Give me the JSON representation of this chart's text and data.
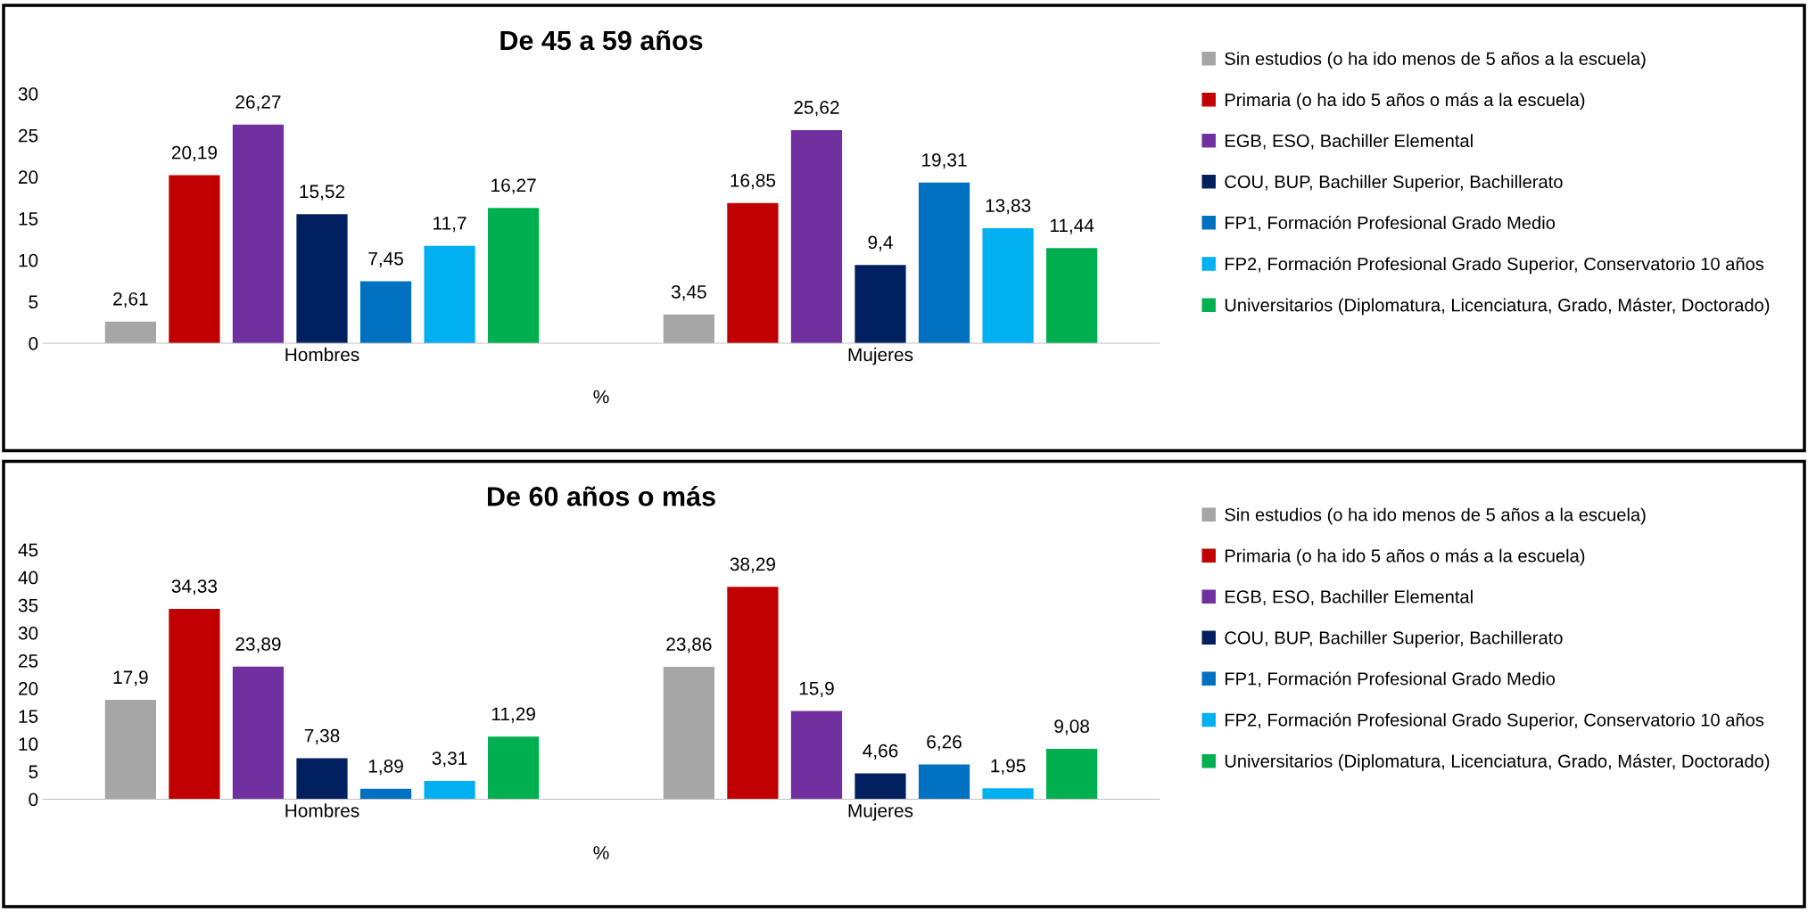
{
  "chart_data": [
    {
      "type": "bar",
      "title": "De 45 a 59 años",
      "xlabel": "%",
      "categories": [
        "Hombres",
        "Mujeres"
      ],
      "ylim": [
        0,
        30
      ],
      "yticks": [
        0,
        5,
        10,
        15,
        20,
        25,
        30
      ],
      "grid": false,
      "legend": "right",
      "series": [
        {
          "name": "Sin estudios (o ha ido menos de 5 años a la escuela)",
          "color": "#a6a6a6",
          "values": [
            2.61,
            3.45
          ],
          "value_labels": [
            "2,61",
            "3,45"
          ]
        },
        {
          "name": "Primaria (o ha ido 5 años o más a la escuela)",
          "color": "#c00000",
          "values": [
            20.19,
            16.85
          ],
          "value_labels": [
            "20,19",
            "16,85"
          ]
        },
        {
          "name": "EGB, ESO, Bachiller Elemental",
          "color": "#7030a0",
          "values": [
            26.27,
            25.62
          ],
          "value_labels": [
            "26,27",
            "25,62"
          ]
        },
        {
          "name": "COU, BUP, Bachiller Superior, Bachillerato",
          "color": "#002060",
          "values": [
            15.52,
            9.4
          ],
          "value_labels": [
            "15,52",
            "9,4"
          ]
        },
        {
          "name": "FP1, Formación Profesional Grado Medio",
          "color": "#0070c0",
          "values": [
            7.45,
            19.31
          ],
          "value_labels": [
            "7,45",
            "19,31"
          ]
        },
        {
          "name": "FP2, Formación Profesional Grado Superior, Conservatorio 10 años",
          "color": "#00b0f0",
          "values": [
            11.7,
            13.83
          ],
          "value_labels": [
            "11,7",
            "13,83"
          ]
        },
        {
          "name": "Universitarios (Diplomatura, Licenciatura, Grado, Máster, Doctorado)",
          "color": "#00b050",
          "values": [
            16.27,
            11.44
          ],
          "value_labels": [
            "16,27",
            "11,44"
          ]
        }
      ]
    },
    {
      "type": "bar",
      "title": "De 60 años o más",
      "xlabel": "%",
      "categories": [
        "Hombres",
        "Mujeres"
      ],
      "ylim": [
        0,
        45
      ],
      "yticks": [
        0,
        5,
        10,
        15,
        20,
        25,
        30,
        35,
        40,
        45
      ],
      "grid": false,
      "legend": "right",
      "series": [
        {
          "name": "Sin estudios (o ha ido menos de 5 años a la escuela)",
          "color": "#a6a6a6",
          "values": [
            17.9,
            23.86
          ],
          "value_labels": [
            "17,9",
            "23,86"
          ]
        },
        {
          "name": "Primaria (o ha ido 5 años o más a la escuela)",
          "color": "#c00000",
          "values": [
            34.33,
            38.29
          ],
          "value_labels": [
            "34,33",
            "38,29"
          ]
        },
        {
          "name": "EGB, ESO, Bachiller Elemental",
          "color": "#7030a0",
          "values": [
            23.89,
            15.9
          ],
          "value_labels": [
            "23,89",
            "15,9"
          ]
        },
        {
          "name": "COU, BUP, Bachiller Superior, Bachillerato",
          "color": "#002060",
          "values": [
            7.38,
            4.66
          ],
          "value_labels": [
            "7,38",
            "4,66"
          ]
        },
        {
          "name": "FP1, Formación Profesional Grado Medio",
          "color": "#0070c0",
          "values": [
            1.89,
            6.26
          ],
          "value_labels": [
            "1,89",
            "6,26"
          ]
        },
        {
          "name": "FP2, Formación Profesional Grado Superior, Conservatorio 10 años",
          "color": "#00b0f0",
          "values": [
            3.31,
            1.95
          ],
          "value_labels": [
            "3,31",
            "1,95"
          ]
        },
        {
          "name": "Universitarios (Diplomatura, Licenciatura, Grado, Máster, Doctorado)",
          "color": "#00b050",
          "values": [
            11.29,
            9.08
          ],
          "value_labels": [
            "11,29",
            "9,08"
          ]
        }
      ]
    }
  ]
}
